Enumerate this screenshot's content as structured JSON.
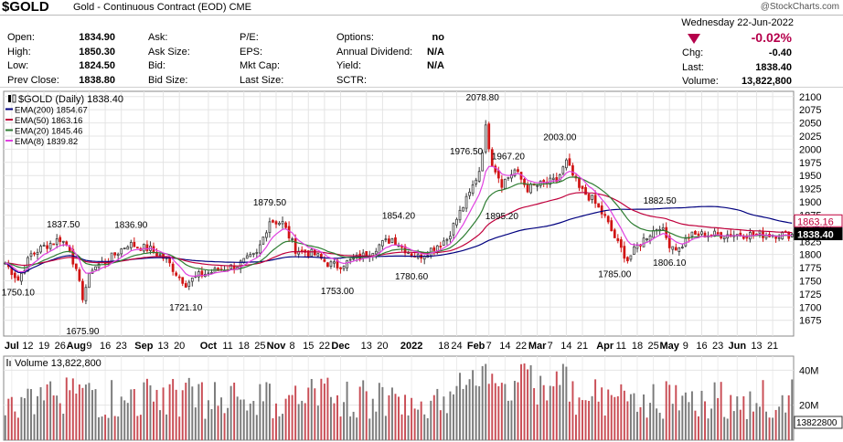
{
  "header": {
    "symbol": "$GOLD",
    "name": "Gold - Continuous Contract (EOD)",
    "exchange": "CME",
    "watermark": "@StockCharts.com",
    "date": "Wednesday  22-Jun-2022",
    "change_pct": "-0.02%",
    "change_color": "#b5004b",
    "quote_cols": [
      [
        [
          "Open:",
          "1834.90"
        ],
        [
          "High:",
          "1850.30"
        ],
        [
          "Low:",
          "1824.50"
        ],
        [
          "Prev Close:",
          "1838.80"
        ]
      ],
      [
        [
          "Ask:",
          ""
        ],
        [
          "Ask Size:",
          ""
        ],
        [
          "Bid:",
          ""
        ],
        [
          "Bid Size:",
          ""
        ]
      ],
      [
        [
          "P/E:",
          ""
        ],
        [
          "EPS:",
          ""
        ],
        [
          "Mkt Cap:",
          ""
        ],
        [
          "Last Size:",
          ""
        ]
      ],
      [
        [
          "Options:",
          "no"
        ],
        [
          "Annual Dividend:",
          "N/A"
        ],
        [
          "Yield:",
          "N/A"
        ],
        [
          "SCTR:",
          ""
        ]
      ],
      [
        [
          "Chg:",
          "-0.40"
        ],
        [
          "Last:",
          "1838.40"
        ],
        [
          "Volume:",
          "13,822,800"
        ]
      ]
    ]
  },
  "chart_data": {
    "type": "candlestick",
    "period": "Daily",
    "legend": [
      {
        "label": "$GOLD (Daily) 1838.40",
        "color": "#000000"
      },
      {
        "label": "EMA(200) 1854.67",
        "color": "#00007f"
      },
      {
        "label": "EMA(50) 1863.16",
        "color": "#c0003c"
      },
      {
        "label": "EMA(20) 1845.46",
        "color": "#2e7d32"
      },
      {
        "label": "EMA(8) 1839.82",
        "color": "#e040e0"
      }
    ],
    "y_ticks": [
      1675,
      1700,
      1725,
      1750,
      1775,
      1800,
      1825,
      1850,
      1875,
      1900,
      1925,
      1950,
      1975,
      2000,
      2025,
      2050,
      2075,
      2100
    ],
    "ylim": [
      1645,
      2110
    ],
    "price_tags": [
      {
        "text": "1854.67",
        "value": 1854.67,
        "color": "#00007f"
      },
      {
        "text": "1863.16",
        "value": 1863.16,
        "color": "#c0003c"
      },
      {
        "text": "1838.40",
        "value": 1838.4,
        "color": "#000000"
      }
    ],
    "annotations": [
      {
        "text": "1750.10",
        "i": 4,
        "v": 1750.1,
        "pos": "below"
      },
      {
        "text": "1837.50",
        "i": 18,
        "v": 1837.5,
        "pos": "above"
      },
      {
        "text": "1675.90",
        "i": 24,
        "v": 1675.9,
        "pos": "below"
      },
      {
        "text": "1836.90",
        "i": 39,
        "v": 1836.9,
        "pos": "above"
      },
      {
        "text": "1721.10",
        "i": 56,
        "v": 1721.1,
        "pos": "below"
      },
      {
        "text": "1879.50",
        "i": 82,
        "v": 1879.5,
        "pos": "above"
      },
      {
        "text": "1753.00",
        "i": 103,
        "v": 1753.0,
        "pos": "below"
      },
      {
        "text": "1854.20",
        "i": 122,
        "v": 1854.2,
        "pos": "above"
      },
      {
        "text": "1780.60",
        "i": 126,
        "v": 1780.6,
        "pos": "below"
      },
      {
        "text": "1976.50",
        "i": 143,
        "v": 1976.5,
        "pos": "above"
      },
      {
        "text": "2078.80",
        "i": 148,
        "v": 2078.8,
        "pos": "above"
      },
      {
        "text": "1967.20",
        "i": 156,
        "v": 1967.2,
        "pos": "above"
      },
      {
        "text": "1895.20",
        "i": 154,
        "v": 1895.2,
        "pos": "below"
      },
      {
        "text": "2003.00",
        "i": 172,
        "v": 2003.0,
        "pos": "above"
      },
      {
        "text": "1785.00",
        "i": 189,
        "v": 1785.0,
        "pos": "below"
      },
      {
        "text": "1882.50",
        "i": 203,
        "v": 1882.5,
        "pos": "above"
      },
      {
        "text": "1806.10",
        "i": 206,
        "v": 1806.1,
        "pos": "below"
      }
    ],
    "x_labels": [
      {
        "text": "Jul",
        "i": 2,
        "bold": true
      },
      {
        "text": "12",
        "i": 7
      },
      {
        "text": "19",
        "i": 12
      },
      {
        "text": "26",
        "i": 17
      },
      {
        "text": "Aug",
        "i": 22,
        "bold": true
      },
      {
        "text": "9",
        "i": 26
      },
      {
        "text": "16",
        "i": 31
      },
      {
        "text": "23",
        "i": 36
      },
      {
        "text": "Sep",
        "i": 43,
        "bold": true
      },
      {
        "text": "13",
        "i": 49
      },
      {
        "text": "20",
        "i": 54
      },
      {
        "text": "Oct",
        "i": 63,
        "bold": true
      },
      {
        "text": "11",
        "i": 69
      },
      {
        "text": "18",
        "i": 74
      },
      {
        "text": "25",
        "i": 79
      },
      {
        "text": "Nov",
        "i": 84,
        "bold": true
      },
      {
        "text": "8",
        "i": 89
      },
      {
        "text": "15",
        "i": 94
      },
      {
        "text": "22",
        "i": 99
      },
      {
        "text": "Dec",
        "i": 104,
        "bold": true
      },
      {
        "text": "13",
        "i": 112
      },
      {
        "text": "20",
        "i": 117
      },
      {
        "text": "2022",
        "i": 126,
        "bold": true
      },
      {
        "text": "18",
        "i": 136
      },
      {
        "text": "24",
        "i": 140
      },
      {
        "text": "Feb",
        "i": 146,
        "bold": true
      },
      {
        "text": "7",
        "i": 150
      },
      {
        "text": "14",
        "i": 155
      },
      {
        "text": "22",
        "i": 160
      },
      {
        "text": "Mar",
        "i": 165,
        "bold": true
      },
      {
        "text": "7",
        "i": 169
      },
      {
        "text": "14",
        "i": 174
      },
      {
        "text": "21",
        "i": 179
      },
      {
        "text": "Apr",
        "i": 186,
        "bold": true
      },
      {
        "text": "11",
        "i": 191
      },
      {
        "text": "18",
        "i": 196
      },
      {
        "text": "25",
        "i": 201
      },
      {
        "text": "May",
        "i": 206,
        "bold": true
      },
      {
        "text": "9",
        "i": 211
      },
      {
        "text": "16",
        "i": 216
      },
      {
        "text": "23",
        "i": 221
      },
      {
        "text": "Jun",
        "i": 227,
        "bold": true
      },
      {
        "text": "13",
        "i": 233
      },
      {
        "text": "21",
        "i": 238
      }
    ],
    "x_count": 245,
    "anchors": [
      [
        0,
        1784
      ],
      [
        4,
        1752
      ],
      [
        8,
        1800
      ],
      [
        12,
        1815
      ],
      [
        17,
        1830
      ],
      [
        20,
        1812
      ],
      [
        24,
        1720
      ],
      [
        27,
        1775
      ],
      [
        32,
        1790
      ],
      [
        38,
        1820
      ],
      [
        45,
        1810
      ],
      [
        50,
        1790
      ],
      [
        53,
        1765
      ],
      [
        56,
        1745
      ],
      [
        60,
        1760
      ],
      [
        66,
        1770
      ],
      [
        72,
        1780
      ],
      [
        78,
        1800
      ],
      [
        82,
        1865
      ],
      [
        86,
        1860
      ],
      [
        90,
        1810
      ],
      [
        96,
        1800
      ],
      [
        100,
        1783
      ],
      [
        103,
        1778
      ],
      [
        108,
        1790
      ],
      [
        112,
        1800
      ],
      [
        116,
        1818
      ],
      [
        120,
        1830
      ],
      [
        124,
        1810
      ],
      [
        128,
        1795
      ],
      [
        132,
        1810
      ],
      [
        137,
        1830
      ],
      [
        141,
        1880
      ],
      [
        144,
        1915
      ],
      [
        147,
        1960
      ],
      [
        149,
        2040
      ],
      [
        151,
        1975
      ],
      [
        154,
        1935
      ],
      [
        158,
        1960
      ],
      [
        162,
        1925
      ],
      [
        167,
        1935
      ],
      [
        171,
        1940
      ],
      [
        174,
        1975
      ],
      [
        178,
        1925
      ],
      [
        182,
        1905
      ],
      [
        186,
        1870
      ],
      [
        190,
        1820
      ],
      [
        193,
        1790
      ],
      [
        196,
        1815
      ],
      [
        199,
        1835
      ],
      [
        203,
        1855
      ],
      [
        206,
        1820
      ],
      [
        209,
        1810
      ],
      [
        212,
        1835
      ],
      [
        215,
        1838
      ]
    ],
    "volume": {
      "label": "Volume 13,822,800",
      "ticks": [
        {
          "text": "20M",
          "v": 20
        },
        {
          "text": "40M",
          "v": 40
        }
      ],
      "last_tag": "13822800",
      "max": 48
    },
    "colors": {
      "up": "#3a3a3a",
      "down": "#d01515",
      "volume_up": "#7a7a7a",
      "volume_down": "#c94d55"
    }
  }
}
